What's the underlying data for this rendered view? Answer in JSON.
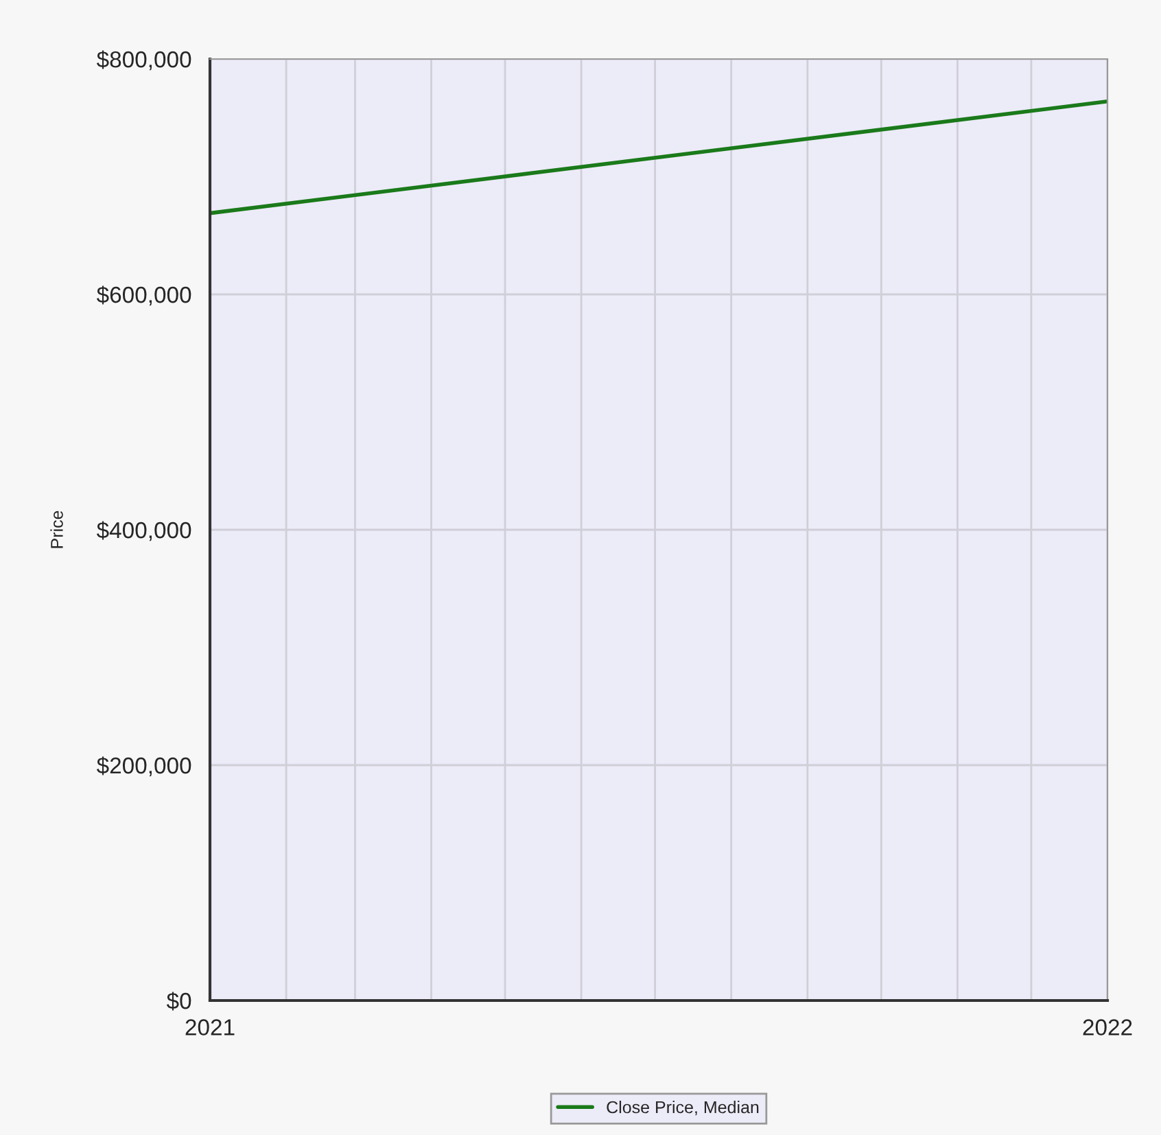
{
  "chart_data": {
    "type": "line",
    "ylabel": "Price",
    "x": [
      "2021-01-01",
      "2022-01-01"
    ],
    "series": [
      {
        "name": "Close Price, Median",
        "color": "#1a7a1a",
        "values": [
          669000,
          764000
        ]
      }
    ],
    "xlim": [
      "2021-01-01",
      "2022-01-01"
    ],
    "xticks": [
      {
        "value": "2021-01-01",
        "label": "2021"
      },
      {
        "value": "2021-02-01",
        "label": null
      },
      {
        "value": "2021-03-01",
        "label": null
      },
      {
        "value": "2021-04-01",
        "label": null
      },
      {
        "value": "2021-05-01",
        "label": null
      },
      {
        "value": "2021-06-01",
        "label": null
      },
      {
        "value": "2021-07-01",
        "label": null
      },
      {
        "value": "2021-08-01",
        "label": null
      },
      {
        "value": "2021-09-01",
        "label": null
      },
      {
        "value": "2021-10-01",
        "label": null
      },
      {
        "value": "2021-11-01",
        "label": null
      },
      {
        "value": "2021-12-01",
        "label": null
      },
      {
        "value": "2022-01-01",
        "label": "2022"
      }
    ],
    "ylim": [
      0,
      800000
    ],
    "yticks": [
      {
        "value": 0,
        "label": "$0"
      },
      {
        "value": 200000,
        "label": "$200,000"
      },
      {
        "value": 400000,
        "label": "$400,000"
      },
      {
        "value": 600000,
        "label": "$600,000"
      },
      {
        "value": 800000,
        "label": "$800,000"
      }
    ],
    "grid": true,
    "legend": "bottom",
    "marker": "none",
    "line_style": "solid"
  }
}
